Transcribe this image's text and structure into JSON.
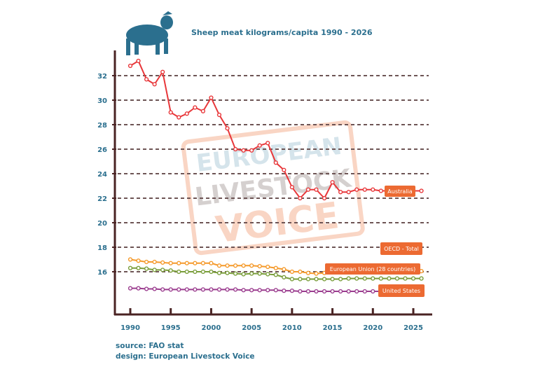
{
  "chart_data": {
    "type": "line",
    "title": "Sheep meat kilograms/capita 1990 - 2026",
    "xlabel": "",
    "ylabel": "",
    "x": [
      1990,
      1991,
      1992,
      1993,
      1994,
      1995,
      1996,
      1997,
      1998,
      1999,
      2000,
      2001,
      2002,
      2003,
      2004,
      2005,
      2006,
      2007,
      2008,
      2009,
      2010,
      2011,
      2012,
      2013,
      2014,
      2015,
      2016,
      2017,
      2018,
      2019,
      2020,
      2021,
      2022,
      2023,
      2024,
      2025,
      2026
    ],
    "xticks": [
      "1990",
      "1995",
      "2000",
      "2005",
      "2010",
      "2015",
      "2020",
      "2025"
    ],
    "yticks": [
      "16",
      "18",
      "20",
      "22",
      "24",
      "26",
      "28",
      "30",
      "32"
    ],
    "ylim": [
      13,
      34
    ],
    "grid": "horizontal dashed",
    "series": [
      {
        "name": "Australia",
        "color": "#e8373a",
        "values": [
          32.8,
          33.2,
          31.7,
          31.3,
          32.3,
          29.0,
          28.6,
          28.9,
          29.4,
          29.1,
          30.2,
          28.8,
          27.7,
          26.0,
          25.9,
          25.9,
          26.3,
          26.5,
          24.9,
          24.3,
          22.9,
          22.0,
          22.7,
          22.7,
          22.0,
          23.3,
          22.5,
          22.5,
          22.7,
          22.7,
          22.7,
          22.6,
          22.6,
          22.6,
          22.6,
          22.6,
          22.6
        ]
      },
      {
        "name": "OECD - Total",
        "color": "#f59a2b",
        "values": [
          17.0,
          16.9,
          16.8,
          16.8,
          16.75,
          16.7,
          16.7,
          16.7,
          16.7,
          16.7,
          16.7,
          16.5,
          16.5,
          16.5,
          16.5,
          16.5,
          16.45,
          16.4,
          16.3,
          16.2,
          16.0,
          16.0,
          15.9,
          15.85,
          15.9,
          15.95,
          16.0,
          16.0,
          16.0,
          16.0,
          16.0,
          16.0,
          16.0,
          16.0,
          16.0,
          16.05,
          16.05
        ]
      },
      {
        "name": "European Union (28 countries)",
        "color": "#7a9e3b",
        "values": [
          16.3,
          16.3,
          16.25,
          16.15,
          16.15,
          16.1,
          16.0,
          16.0,
          16.0,
          16.0,
          16.0,
          15.9,
          15.9,
          15.85,
          15.8,
          15.85,
          15.85,
          15.8,
          15.75,
          15.55,
          15.4,
          15.4,
          15.4,
          15.4,
          15.4,
          15.4,
          15.4,
          15.45,
          15.45,
          15.45,
          15.45,
          15.45,
          15.45,
          15.45,
          15.45,
          15.45,
          15.45
        ]
      },
      {
        "name": "United States",
        "color": "#9b3d8f",
        "values": [
          14.65,
          14.65,
          14.6,
          14.6,
          14.55,
          14.55,
          14.55,
          14.55,
          14.55,
          14.55,
          14.55,
          14.55,
          14.55,
          14.55,
          14.5,
          14.5,
          14.5,
          14.5,
          14.5,
          14.45,
          14.45,
          14.4,
          14.4,
          14.4,
          14.4,
          14.4,
          14.4,
          14.4,
          14.4,
          14.4,
          14.4,
          14.4,
          14.4,
          14.4,
          14.4,
          14.4,
          14.4
        ]
      }
    ],
    "annotations": [
      "Australia",
      "OECD - Total",
      "European Union (28 countries)",
      "United States"
    ]
  },
  "source_line": "source: FAO stat",
  "design_line": "design: European Livestock Voice",
  "watermark": "EUROPEAN LIVESTOCK VOICE",
  "colors": {
    "axis": "#4a2323",
    "grid": "#6e5555",
    "text": "#2b6f8e",
    "label_bg": "#ec6a32"
  }
}
